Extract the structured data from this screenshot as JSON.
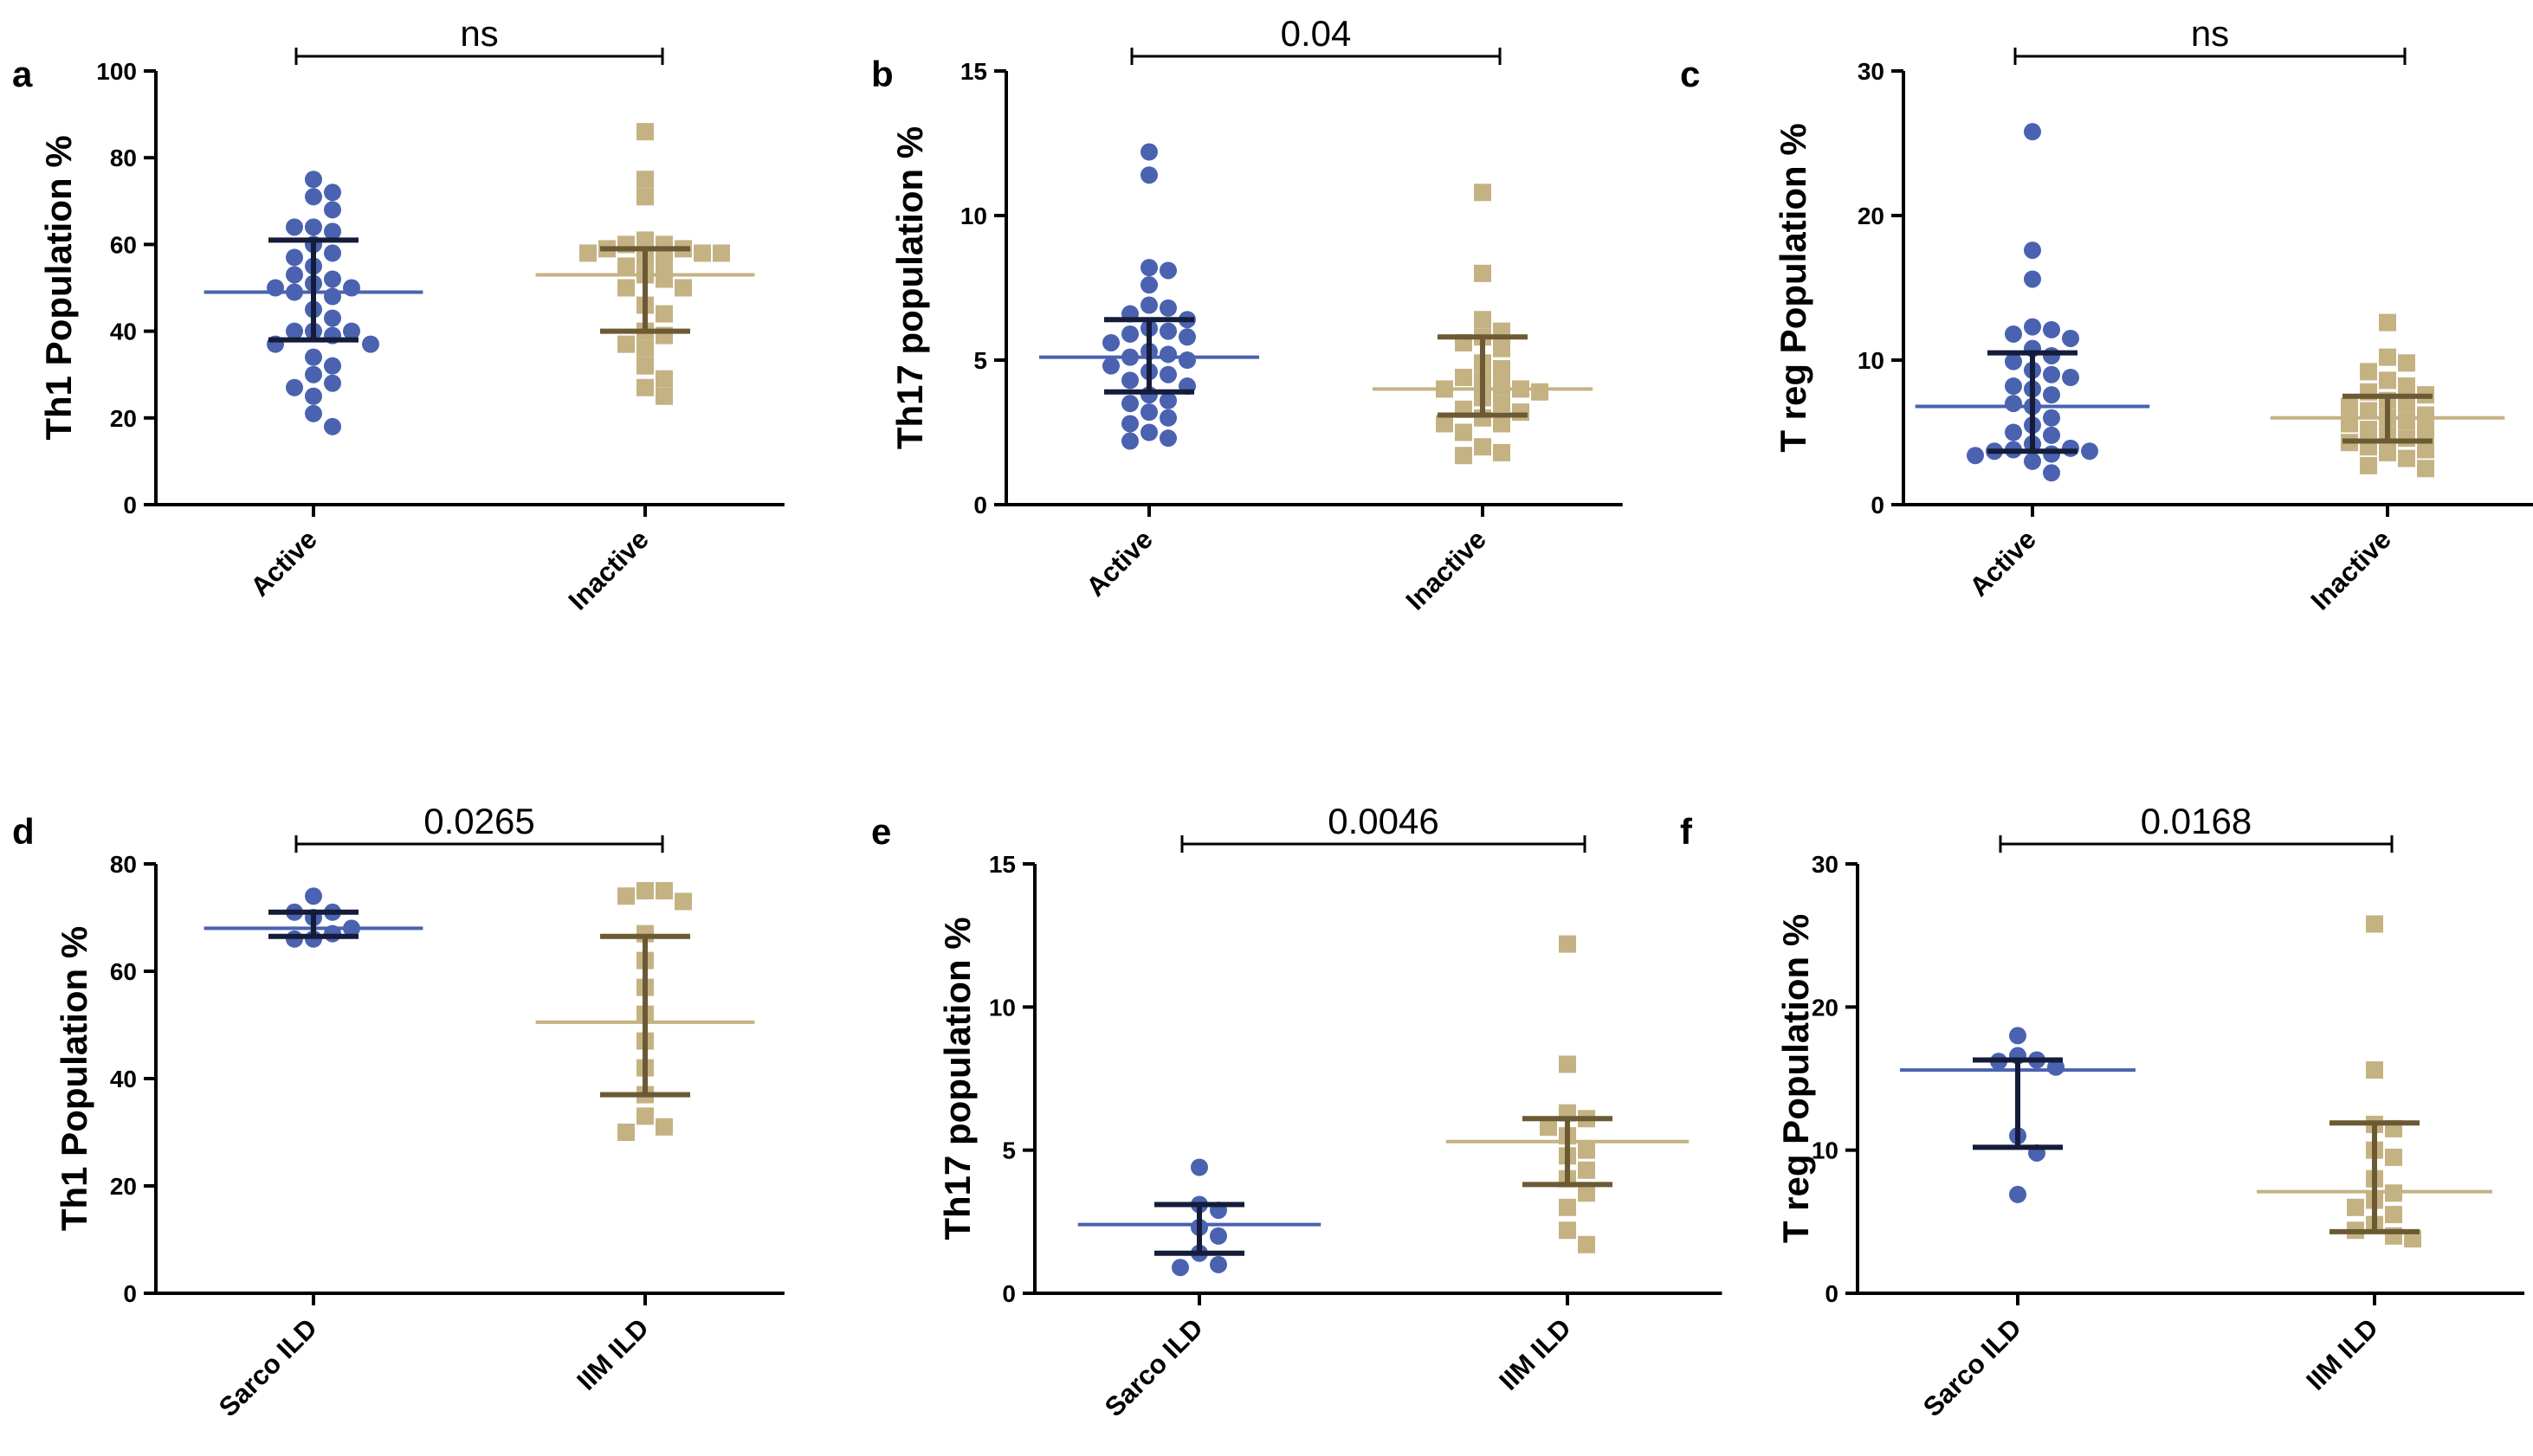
{
  "colors": {
    "blue_points": "#4A62B0",
    "blue_median": "#4A62B0",
    "blue_error": "#141c3a",
    "tan_points": "#C4B283",
    "tan_median": "#C4B283",
    "tan_error": "#6b5a33"
  },
  "chart_data": [
    {
      "type": "scatter",
      "panel": "a",
      "ylabel": "Th1 Population %",
      "ylim": [
        0,
        100
      ],
      "yticks": [
        0,
        20,
        40,
        60,
        80,
        100
      ],
      "categories": [
        "Active",
        "Inactive"
      ],
      "significance": "ns",
      "series": [
        {
          "values": [
            75,
            71,
            72,
            68,
            64,
            63,
            64,
            60,
            58,
            57,
            55,
            52,
            53,
            51,
            50,
            50,
            49,
            48,
            45,
            43,
            40,
            40,
            40,
            39,
            37,
            37,
            34,
            32,
            30,
            28,
            27,
            25,
            21,
            18
          ],
          "median": 49,
          "q1": 38,
          "q3": 61
        },
        {
          "values": [
            86,
            75,
            71,
            61,
            60,
            60,
            59,
            59,
            58,
            58,
            58,
            57,
            56,
            55,
            53,
            52,
            50,
            50,
            46,
            44,
            40,
            39,
            37,
            36,
            32,
            29,
            27,
            25
          ],
          "median": 53,
          "q1": 40,
          "q3": 59
        }
      ]
    },
    {
      "type": "scatter",
      "panel": "b",
      "ylabel": "Th17 population %",
      "ylim": [
        0,
        15
      ],
      "yticks": [
        0,
        5,
        10,
        15
      ],
      "categories": [
        "Active",
        "Inactive"
      ],
      "significance": "0.04",
      "series": [
        {
          "values": [
            12.2,
            11.4,
            8.2,
            8.1,
            7.6,
            6.9,
            6.8,
            6.6,
            6.4,
            6.1,
            6.0,
            5.9,
            5.8,
            5.6,
            5.3,
            5.2,
            5.1,
            5.0,
            4.8,
            4.6,
            4.5,
            4.3,
            4.1,
            3.8,
            3.6,
            3.5,
            3.2,
            3.0,
            2.8,
            2.5,
            2.3,
            2.2
          ],
          "median": 5.1,
          "q1": 3.9,
          "q3": 6.4
        },
        {
          "values": [
            10.8,
            8.0,
            6.4,
            6.0,
            5.8,
            5.6,
            5.4,
            4.9,
            4.7,
            4.4,
            4.3,
            4.1,
            4.0,
            4.0,
            3.9,
            3.7,
            3.5,
            3.3,
            3.2,
            3.0,
            2.8,
            2.8,
            2.5,
            2.0,
            1.8,
            1.7
          ],
          "median": 4.0,
          "q1": 3.1,
          "q3": 5.8
        }
      ]
    },
    {
      "type": "scatter",
      "panel": "c",
      "ylabel": "T reg Population %",
      "ylim": [
        0,
        30
      ],
      "yticks": [
        0,
        10,
        20,
        30
      ],
      "categories": [
        "Active",
        "Inactive"
      ],
      "significance": "ns",
      "series": [
        {
          "values": [
            25.8,
            17.6,
            15.6,
            12.3,
            12.1,
            11.8,
            11.5,
            10.8,
            10.3,
            9.9,
            9.3,
            9.0,
            8.8,
            8.2,
            8.0,
            7.6,
            7.0,
            6.8,
            6.0,
            5.5,
            5.0,
            4.8,
            4.2,
            3.9,
            3.8,
            3.7,
            3.7,
            3.5,
            3.4,
            3.0,
            2.2
          ],
          "median": 6.8,
          "q1": 3.7,
          "q3": 10.5
        },
        {
          "values": [
            12.6,
            10.2,
            9.8,
            9.2,
            8.6,
            8.2,
            7.8,
            7.6,
            7.2,
            7.0,
            6.8,
            6.5,
            6.2,
            6.0,
            5.8,
            5.6,
            5.2,
            5.0,
            4.8,
            4.6,
            4.3,
            4.0,
            3.8,
            3.6,
            3.2,
            2.7,
            2.5
          ],
          "median": 6.0,
          "q1": 4.4,
          "q3": 7.5
        }
      ]
    },
    {
      "type": "scatter",
      "panel": "d",
      "ylabel": "Th1 Population %",
      "ylim": [
        0,
        80
      ],
      "yticks": [
        0,
        20,
        40,
        60,
        80
      ],
      "categories": [
        "Sarco ILD",
        "IIM ILD"
      ],
      "significance": "0.0265",
      "series": [
        {
          "values": [
            74,
            71,
            71,
            70,
            68,
            67,
            66,
            66
          ],
          "median": 68,
          "q1": 66.5,
          "q3": 71
        },
        {
          "values": [
            75,
            75,
            74,
            73,
            67,
            62,
            57,
            52,
            47,
            42,
            37,
            33,
            31,
            30
          ],
          "median": 50.5,
          "q1": 37,
          "q3": 66.5
        }
      ]
    },
    {
      "type": "scatter",
      "panel": "e",
      "ylabel": "Th17 population %",
      "ylim": [
        0,
        15
      ],
      "yticks": [
        0,
        5,
        10,
        15
      ],
      "categories": [
        "Sarco ILD",
        "IIM ILD"
      ],
      "significance": "0.0046",
      "series": [
        {
          "values": [
            4.4,
            3.1,
            2.9,
            2.3,
            2.0,
            1.4,
            1.0,
            0.9
          ],
          "median": 2.4,
          "q1": 1.4,
          "q3": 3.1
        },
        {
          "values": [
            12.2,
            8.0,
            6.3,
            6.1,
            5.8,
            5.5,
            5.0,
            4.8,
            4.3,
            4.0,
            3.5,
            3.0,
            2.2,
            1.7
          ],
          "median": 5.3,
          "q1": 3.8,
          "q3": 6.1
        }
      ]
    },
    {
      "type": "scatter",
      "panel": "f",
      "ylabel": "T reg Population %",
      "ylim": [
        0,
        30
      ],
      "yticks": [
        0,
        10,
        20,
        30
      ],
      "categories": [
        "Sarco ILD",
        "IIM ILD"
      ],
      "significance": "0.0168",
      "series": [
        {
          "values": [
            18.0,
            16.6,
            16.3,
            16.2,
            15.8,
            11.0,
            9.8,
            6.9
          ],
          "median": 15.6,
          "q1": 10.2,
          "q3": 16.3
        },
        {
          "values": [
            25.8,
            15.6,
            11.8,
            11.5,
            10.0,
            9.5,
            8.0,
            7.0,
            6.5,
            6.0,
            5.5,
            4.8,
            4.4,
            4.0,
            3.8
          ],
          "median": 7.1,
          "q1": 4.3,
          "q3": 11.9
        }
      ]
    }
  ]
}
